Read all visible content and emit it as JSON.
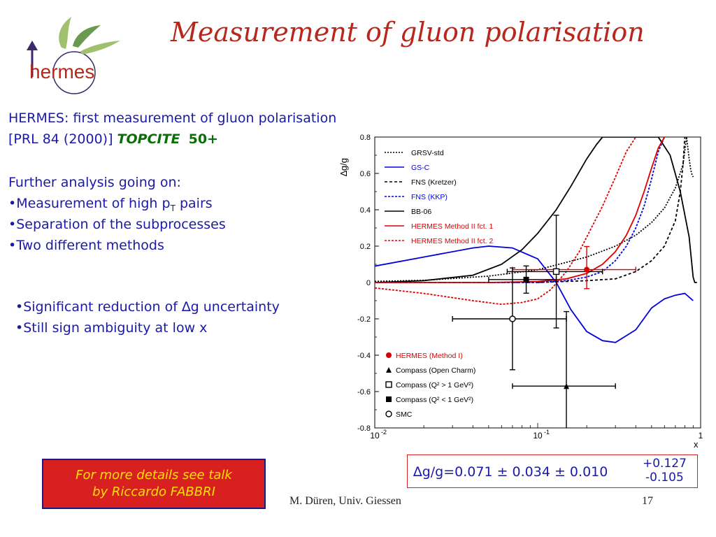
{
  "slide": {
    "title": "Measurement of gluon polarisation",
    "logo_text": "hermes",
    "line1": "HERMES: first measurement of gluon polarisation",
    "line2_prefix": "[PRL 84 (2000)] ",
    "line2_topcite": "TOPCITE",
    "line2_count": "50+",
    "further": "Further analysis going on:",
    "bullets": [
      "Measurement of high p",
      "Separation of the subprocesses",
      "Two different methods"
    ],
    "bullet1_sub": "T",
    "bullet1_tail": " pairs",
    "bullets2": [
      "Significant reduction of ∆g uncertainty",
      "Still sign ambiguity at low x"
    ],
    "talk_line1": "For more details see talk",
    "talk_line2": "by Riccardo FABBRI",
    "footer_author": "M. Düren, Univ. Giessen",
    "page_number": "17",
    "result_main": "∆g/g=0.071 ± 0.034 ± 0.010",
    "result_up": "+0.127",
    "result_down": "-0.105"
  },
  "colors": {
    "title": "#b8261c",
    "text": "#1a1aa8",
    "highlight": "#0a6e0a",
    "talk_bg": "#d82020",
    "talk_text": "#ffe000"
  },
  "chart_data": {
    "type": "line",
    "xlabel": "x",
    "ylabel": "∆g/g",
    "xscale": "log",
    "xlim": [
      0.01,
      1
    ],
    "ylim": [
      -0.8,
      0.8
    ],
    "xticks": [
      {
        "v": 0.01,
        "label": "10",
        "exp": "-2"
      },
      {
        "v": 0.1,
        "label": "10",
        "exp": "-1"
      },
      {
        "v": 1,
        "label": "1",
        "exp": ""
      }
    ],
    "yticks": [
      0.8,
      0.6,
      0.4,
      0.2,
      0,
      -0.2,
      -0.4,
      -0.6,
      -0.8
    ],
    "series": [
      {
        "name": "GRSV-std",
        "color": "#000000",
        "dash": "2,2",
        "x": [
          0.01,
          0.02,
          0.05,
          0.1,
          0.2,
          0.3,
          0.4,
          0.5,
          0.6,
          0.7,
          0.78,
          0.82,
          0.85,
          0.87,
          0.88,
          0.9
        ],
        "y": [
          0.006,
          0.012,
          0.035,
          0.07,
          0.14,
          0.2,
          0.26,
          0.33,
          0.41,
          0.52,
          0.65,
          0.8,
          0.68,
          0.62,
          0.6,
          0.58
        ]
      },
      {
        "name": "GS-C",
        "color": "#0000dd",
        "dash": "",
        "x": [
          0.01,
          0.02,
          0.04,
          0.05,
          0.07,
          0.1,
          0.13,
          0.16,
          0.2,
          0.25,
          0.3,
          0.4,
          0.5,
          0.6,
          0.7,
          0.8,
          0.9
        ],
        "y": [
          0.09,
          0.14,
          0.19,
          0.2,
          0.19,
          0.13,
          0.0,
          -0.15,
          -0.27,
          -0.32,
          -0.33,
          -0.26,
          -0.14,
          -0.09,
          -0.07,
          -0.06,
          -0.1
        ]
      },
      {
        "name": "FNS (Kretzer)",
        "color": "#000000",
        "dash": "4,3",
        "x": [
          0.01,
          0.05,
          0.1,
          0.2,
          0.3,
          0.4,
          0.5,
          0.6,
          0.7,
          0.75,
          0.78,
          0.8
        ],
        "y": [
          0.0,
          0.0,
          0.0,
          0.01,
          0.02,
          0.06,
          0.12,
          0.2,
          0.34,
          0.5,
          0.65,
          0.8
        ]
      },
      {
        "name": "FNS (KKP)",
        "color": "#0000dd",
        "dash": "3,2",
        "x": [
          0.01,
          0.05,
          0.1,
          0.15,
          0.2,
          0.25,
          0.3,
          0.35,
          0.4,
          0.45,
          0.5,
          0.55,
          0.6
        ],
        "y": [
          0.0,
          0.0,
          0.0,
          0.01,
          0.03,
          0.06,
          0.12,
          0.2,
          0.3,
          0.42,
          0.57,
          0.72,
          0.8
        ]
      },
      {
        "name": "BB-06",
        "color": "#000000",
        "dash": "",
        "x": [
          0.01,
          0.02,
          0.04,
          0.06,
          0.08,
          0.1,
          0.13,
          0.16,
          0.2,
          0.23,
          0.25,
          0.45,
          0.55,
          0.65,
          0.75,
          0.85,
          0.9,
          0.92,
          0.95
        ],
        "y": [
          0.0,
          0.01,
          0.04,
          0.1,
          0.18,
          0.27,
          0.4,
          0.53,
          0.68,
          0.76,
          0.8,
          0.8,
          0.8,
          0.7,
          0.5,
          0.25,
          0.03,
          0.0,
          0.0
        ]
      },
      {
        "name": "HERMES Method II fct. 1",
        "color": "#dd0000",
        "dash": "",
        "x": [
          0.01,
          0.05,
          0.1,
          0.15,
          0.2,
          0.25,
          0.3,
          0.35,
          0.4,
          0.45,
          0.5,
          0.55,
          0.6
        ],
        "y": [
          0.0,
          0.0,
          0.005,
          0.02,
          0.05,
          0.1,
          0.17,
          0.26,
          0.37,
          0.5,
          0.63,
          0.74,
          0.8
        ]
      },
      {
        "name": "HERMES Method II fct. 2",
        "color": "#dd0000",
        "dash": "3,2",
        "x": [
          0.01,
          0.02,
          0.04,
          0.06,
          0.08,
          0.1,
          0.12,
          0.15,
          0.18,
          0.2,
          0.25,
          0.3,
          0.35,
          0.4
        ],
        "y": [
          -0.03,
          -0.06,
          -0.1,
          -0.12,
          -0.11,
          -0.09,
          -0.04,
          0.06,
          0.17,
          0.25,
          0.42,
          0.58,
          0.72,
          0.8
        ]
      }
    ],
    "points": [
      {
        "name": "HERMES (Method I)",
        "marker": "filled-circle",
        "color": "#dd0000",
        "x": 0.2,
        "y": 0.071,
        "yerr_up": 0.127,
        "yerr_down": 0.105,
        "xerr_low": 0.07,
        "xerr_high": 0.4
      },
      {
        "name": "Compass (Open Charm)",
        "marker": "filled-triangle",
        "color": "#000000",
        "x": 0.15,
        "y": -0.57,
        "yerr_up": 0.41,
        "yerr_down": 0.41,
        "xerr_low": 0.07,
        "xerr_high": 0.3
      },
      {
        "name": "Compass (Q² > 1 GeV²)",
        "marker": "open-square",
        "color": "#000000",
        "x": 0.13,
        "y": 0.06,
        "yerr_up": 0.31,
        "yerr_down": 0.31,
        "xerr_low": 0.065,
        "xerr_high": 0.25
      },
      {
        "name": "Compass (Q² < 1 GeV²)",
        "marker": "filled-square",
        "color": "#000000",
        "x": 0.085,
        "y": 0.016,
        "yerr_up": 0.075,
        "yerr_down": 0.075,
        "xerr_low": 0.05,
        "xerr_high": 0.13
      },
      {
        "name": "SMC",
        "marker": "open-circle",
        "color": "#000000",
        "x": 0.07,
        "y": -0.2,
        "yerr_up": 0.28,
        "yerr_down": 0.28,
        "xerr_low": 0.03,
        "xerr_high": 0.15
      }
    ],
    "legend_lines_placement": "top-left",
    "legend_points_placement": "bottom-left"
  }
}
